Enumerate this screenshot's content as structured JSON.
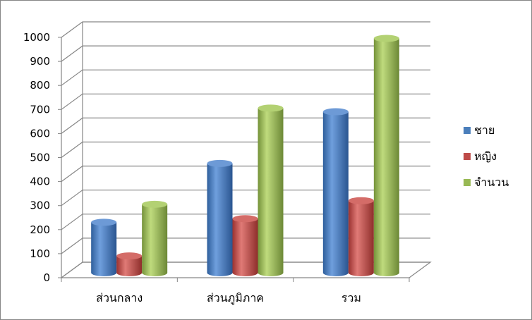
{
  "chart_data": {
    "type": "bar",
    "style": "3d-cylinder",
    "categories": [
      "ส่วนกลาง",
      "ส่วนภูมิภาค",
      "รวม"
    ],
    "series": [
      {
        "name": "ชาย",
        "values": [
          210,
          455,
          670
        ],
        "color": "#4a7ebb"
      },
      {
        "name": "หญิง",
        "values": [
          70,
          225,
          300
        ],
        "color": "#be4b48"
      },
      {
        "name": "จำนวน",
        "values": [
          285,
          685,
          975
        ],
        "color": "#98b954"
      }
    ],
    "yticks": [
      "0",
      "100",
      "200",
      "300",
      "400",
      "500",
      "600",
      "700",
      "800",
      "900",
      "1000"
    ],
    "ylim": [
      0,
      1000
    ],
    "grid": true,
    "legend": "right"
  }
}
